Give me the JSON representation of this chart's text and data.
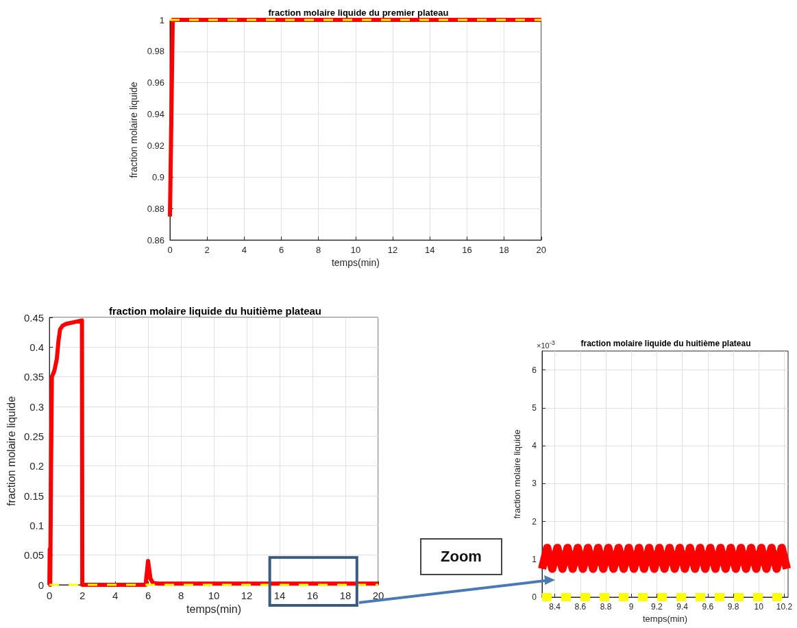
{
  "chart_data": [
    {
      "type": "line",
      "title": "fraction molaire liquide du premier plateau",
      "xlabel": "temps(min)",
      "ylabel": "fraction molaire liquide",
      "xlim": [
        0,
        20
      ],
      "xticks": [
        0,
        2,
        4,
        6,
        8,
        10,
        12,
        14,
        16,
        18,
        20
      ],
      "ylim": [
        0.86,
        1
      ],
      "yticks": [
        0.86,
        0.88,
        0.9,
        0.92,
        0.94,
        0.96,
        0.98,
        1
      ],
      "grid": true,
      "series": [
        {
          "color": "#ff0000",
          "line_style": "solid",
          "x": [
            0,
            0.15,
            20
          ],
          "values": [
            0.875,
            1,
            1
          ]
        },
        {
          "color": "#ffff00",
          "line_style": "dashed",
          "x": [
            0,
            20
          ],
          "values": [
            1,
            1
          ]
        }
      ]
    },
    {
      "type": "line",
      "title": "fraction molaire liquide du huitième plateau",
      "xlabel": "temps(min)",
      "ylabel": "fraction molaire liquide",
      "annotations": [
        "Zoom"
      ],
      "xlim": [
        0,
        20
      ],
      "xticks": [
        0,
        2,
        4,
        6,
        8,
        10,
        12,
        14,
        16,
        18,
        20
      ],
      "ylim": [
        0,
        0.45
      ],
      "yticks": [
        0,
        0.05,
        0.1,
        0.15,
        0.2,
        0.25,
        0.3,
        0.35,
        0.4,
        0.45
      ],
      "grid": true,
      "series": [
        {
          "color": "#ff0000",
          "line_style": "solid",
          "x": [
            0,
            0.02,
            0.05,
            0.1,
            0.15,
            0.3,
            0.45,
            0.55,
            0.65,
            0.8,
            1.0,
            1.5,
            1.98,
            2.0,
            4,
            5.85,
            6.0,
            6.15,
            6.3,
            6.6,
            20
          ],
          "values": [
            0,
            0.06,
            0,
            0.2,
            0.35,
            0.36,
            0.38,
            0.41,
            0.43,
            0.436,
            0.439,
            0.442,
            0.445,
            0,
            0,
            0,
            0.04,
            0.01,
            0.003,
            0.002,
            0.002
          ]
        },
        {
          "color": "#ffff00",
          "line_style": "dashed",
          "x": [
            0,
            20
          ],
          "values": [
            0,
            0
          ]
        }
      ]
    },
    {
      "type": "line",
      "title": "fraction molaire liquide du huitième plateau",
      "xlabel": "temps(min)",
      "ylabel": "fraction molaire liquide",
      "annotations": [
        "×10$^{-3}$"
      ],
      "xlim": [
        8.3,
        10.23
      ],
      "xticks": [
        8.4,
        8.6,
        8.8,
        9,
        9.2,
        9.4,
        9.6,
        9.8,
        10,
        10.2
      ],
      "ylim": [
        0,
        6.5
      ],
      "yticks": [
        0,
        1,
        2,
        3,
        4,
        5,
        6
      ],
      "grid": true,
      "series": [
        {
          "color": "#ff0000",
          "line_style": "solid",
          "x": [
            8.3,
            8.34,
            8.38,
            8.42,
            8.46,
            8.5,
            8.54,
            8.58,
            8.62,
            8.66,
            8.7,
            8.74,
            8.78,
            8.82,
            8.86,
            8.9,
            8.94,
            8.98,
            9.02,
            9.06,
            9.1,
            9.14,
            9.18,
            9.22,
            9.26,
            9.3,
            9.34,
            9.38,
            9.42,
            9.46,
            9.5,
            9.54,
            9.58,
            9.62,
            9.66,
            9.7,
            9.74,
            9.78,
            9.82,
            9.86,
            9.9,
            9.94,
            9.98,
            10.02,
            10.06,
            10.1,
            10.14,
            10.18,
            10.22
          ],
          "values": [
            0.75,
            1.3,
            0.75,
            1.3,
            0.75,
            1.3,
            0.75,
            1.3,
            0.75,
            1.3,
            0.75,
            1.3,
            0.75,
            1.3,
            0.75,
            1.3,
            0.75,
            1.3,
            0.75,
            1.3,
            0.75,
            1.3,
            0.75,
            1.3,
            0.75,
            1.3,
            0.75,
            1.3,
            0.75,
            1.3,
            0.75,
            1.3,
            0.75,
            1.3,
            0.75,
            1.3,
            0.75,
            1.3,
            0.75,
            1.3,
            0.75,
            1.3,
            0.75,
            1.3,
            0.75,
            1.3,
            0.75,
            1.3,
            0.75
          ]
        },
        {
          "color": "#ffff00",
          "line_style": "dashed",
          "x": [
            8.3,
            10.23
          ],
          "values": [
            0,
            0
          ]
        }
      ]
    }
  ]
}
